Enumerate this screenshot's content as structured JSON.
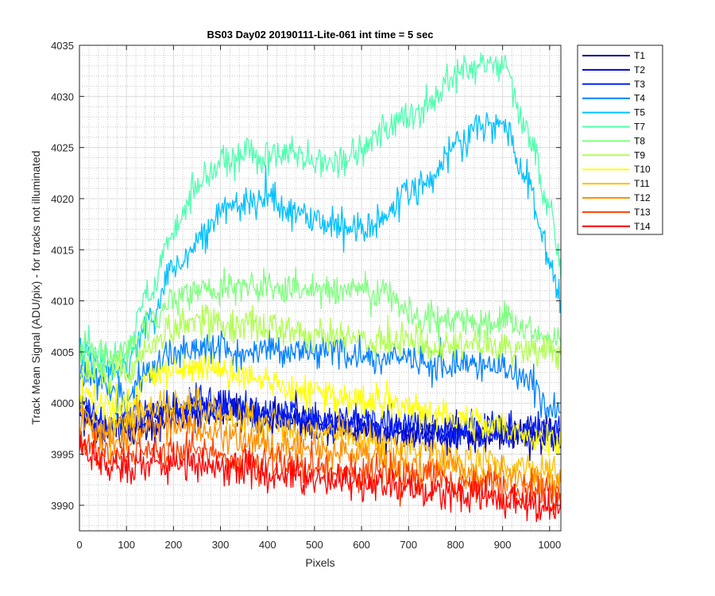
{
  "chart_data": {
    "type": "line",
    "title": "BS03 Day02 20190111-Lite-061 int time = 5 sec",
    "xlabel": "Pixels",
    "ylabel": "Track Mean Signal (ADU/pix) - for tracks not illuminated",
    "xlim": [
      0,
      1024
    ],
    "ylim": [
      3987.5,
      4035
    ],
    "xticks": [
      0,
      100,
      200,
      300,
      400,
      500,
      600,
      700,
      800,
      900,
      1000
    ],
    "yticks": [
      3990,
      3995,
      4000,
      4005,
      4010,
      4015,
      4020,
      4025,
      4030,
      4035
    ],
    "grid": "major and minor",
    "legend_position": "outside top-right",
    "x": [
      0,
      50,
      100,
      150,
      200,
      250,
      300,
      350,
      400,
      450,
      500,
      550,
      600,
      650,
      700,
      750,
      800,
      850,
      900,
      950,
      1000,
      1024
    ],
    "series": [
      {
        "name": "T1",
        "color": "#00008f",
        "values": [
          3999,
          3997.5,
          3997,
          3998,
          3998.5,
          3999,
          3999,
          3999,
          3998.5,
          3998.5,
          3998,
          3998,
          3997.5,
          3997,
          3997,
          3997,
          3997,
          3997,
          3997,
          3997,
          3997,
          3997
        ]
      },
      {
        "name": "T2",
        "color": "#0000d6",
        "values": [
          3999,
          3997.5,
          3998,
          3998.5,
          3999,
          3999.5,
          3999.5,
          3999,
          3998.5,
          3998.5,
          3998,
          3998,
          3998,
          3997.5,
          3997.5,
          3997,
          3997,
          3997,
          3997,
          3997,
          3997,
          3997
        ]
      },
      {
        "name": "T3",
        "color": "#0022ff",
        "values": [
          4000,
          3998,
          3998.5,
          3999,
          3999.5,
          4000,
          4000,
          3999.5,
          3999,
          3999,
          3998.5,
          3998.5,
          3998.5,
          3998,
          3998,
          3997.5,
          3997.5,
          3997.5,
          3997.5,
          3997.5,
          3997.5,
          3997.5
        ]
      },
      {
        "name": "T4",
        "color": "#0080ff",
        "values": [
          4003,
          4002,
          4001,
          4003,
          4005,
          4005.5,
          4005.5,
          4005,
          4005.5,
          4005,
          4005,
          4005,
          4004.5,
          4004,
          4004.5,
          4004,
          4003.5,
          4003.5,
          4003.5,
          4002,
          3999.5,
          3999
        ]
      },
      {
        "name": "T5",
        "color": "#00c0ff",
        "values": [
          4005,
          4003.5,
          4003.5,
          4008,
          4013,
          4016,
          4018.5,
          4019.5,
          4020,
          4018.5,
          4018,
          4017.5,
          4017,
          4018,
          4020.5,
          4022,
          4025,
          4027,
          4027.5,
          4022,
          4014,
          4010
        ]
      },
      {
        "name": "T7",
        "color": "#50ffaf",
        "values": [
          4005,
          4004.5,
          4005,
          4011,
          4017,
          4021,
          4023.5,
          4024.5,
          4024,
          4024.5,
          4023.5,
          4023.5,
          4025,
          4026.5,
          4028,
          4029.5,
          4032,
          4033,
          4033,
          4027,
          4019,
          4013
        ]
      },
      {
        "name": "T8",
        "color": "#80ff80",
        "values": [
          4005.5,
          4004.5,
          4005,
          4008,
          4010,
          4011,
          4011,
          4011.5,
          4011.5,
          4011,
          4011,
          4011,
          4011,
          4011,
          4009,
          4008,
          4008,
          4008,
          4008,
          4007,
          4006.5,
          4006
        ]
      },
      {
        "name": "T9",
        "color": "#b0ff50",
        "values": [
          4003.5,
          4003,
          4003,
          4005.5,
          4007.5,
          4008,
          4008,
          4007.5,
          4007.5,
          4007,
          4006.5,
          4006.5,
          4006.5,
          4006,
          4006,
          4005.5,
          4005.5,
          4005.5,
          4005.5,
          4005,
          4005,
          4004.5
        ]
      },
      {
        "name": "T10",
        "color": "#ffff00",
        "values": [
          4001,
          4000,
          4000,
          4002.5,
          4003.5,
          4003.5,
          4003,
          4002.5,
          4002,
          4001.5,
          4001,
          4000.5,
          4000,
          4000,
          3999.5,
          3999,
          3998.5,
          3998,
          3997.5,
          3997,
          3996.5,
          3996
        ]
      },
      {
        "name": "T11",
        "color": "#ffbf00",
        "values": [
          3999,
          3997.5,
          3998,
          3999.5,
          4000,
          3999.5,
          3999,
          3998.5,
          3998,
          3997.5,
          3997,
          3997,
          3996.5,
          3996,
          3995.5,
          3995,
          3994.5,
          3994.5,
          3994,
          3993.5,
          3993.5,
          3993
        ]
      },
      {
        "name": "T12",
        "color": "#ff8f00",
        "values": [
          3998,
          3996.5,
          3996.5,
          3997.5,
          3998,
          3997.5,
          3997,
          3996.5,
          3996,
          3996,
          3995.5,
          3995,
          3995,
          3994.5,
          3994,
          3994,
          3993.5,
          3993,
          3993,
          3992.5,
          3992,
          3992
        ]
      },
      {
        "name": "T13",
        "color": "#ff4000",
        "values": [
          3996.5,
          3995,
          3995,
          3995.5,
          3995.5,
          3995.5,
          3995,
          3994.5,
          3994,
          3994,
          3993.5,
          3993.5,
          3993,
          3993,
          3992.5,
          3992.5,
          3992,
          3992,
          3991.5,
          3991.5,
          3991,
          3991
        ]
      },
      {
        "name": "T14",
        "color": "#ff0000",
        "values": [
          3995.5,
          3994,
          3993.5,
          3994,
          3994,
          3994,
          3993.5,
          3993.5,
          3993,
          3993,
          3992.5,
          3992.5,
          3992,
          3992,
          3991.5,
          3991.5,
          3991,
          3991,
          3990.5,
          3990.5,
          3990,
          3990
        ]
      }
    ]
  }
}
